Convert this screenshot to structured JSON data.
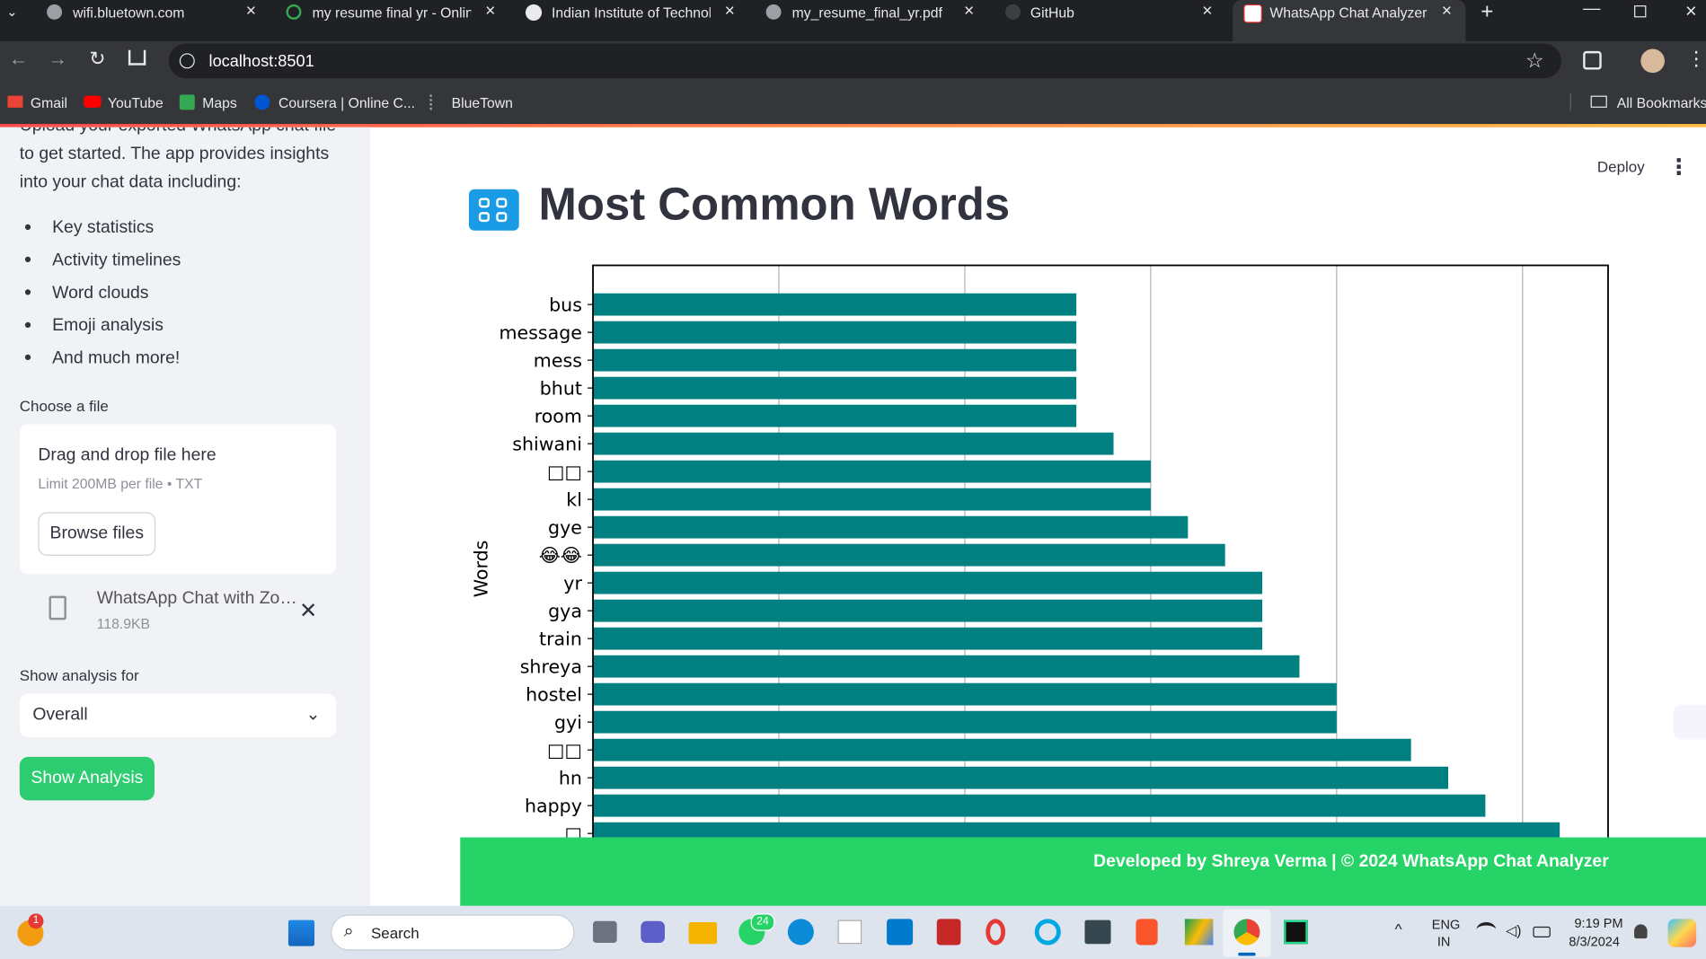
{
  "browser": {
    "tabs": [
      "wifi.bluetown.com",
      "my resume final yr - Online",
      "Indian Institute of Technolo",
      "my_resume_final_yr.pdf",
      "GitHub",
      "WhatsApp Chat Analyzer"
    ],
    "url": "localhost:8501",
    "bookmarks": [
      "Gmail",
      "YouTube",
      "Maps",
      "Coursera | Online C...",
      "BlueTown"
    ],
    "all_bookmarks": "All Bookmarks"
  },
  "sidebar": {
    "intro": "Upload your exported WhatsApp chat file to get started. The app provides insights into your chat data including:",
    "features": [
      "Key statistics",
      "Activity timelines",
      "Word clouds",
      "Emoji analysis",
      "And much more!"
    ],
    "file_label": "Choose a file",
    "dropzone_title": "Drag and drop file here",
    "dropzone_hint": "Limit 200MB per file • TXT",
    "browse_button": "Browse files",
    "file_name": "WhatsApp Chat with Zo…",
    "file_size": "118.9KB",
    "select_label": "Show analysis for",
    "select_value": "Overall",
    "button": "Show Analysis"
  },
  "header": {
    "deploy": "Deploy"
  },
  "page_title": "Most Common Words",
  "chart_data": {
    "type": "barh",
    "y_label": "Words",
    "categories": [
      "bus",
      "message",
      "mess",
      "bhut",
      "room",
      "shiwani",
      "□□",
      "kl",
      "gye",
      "😂😂",
      "yr",
      "gya",
      "train",
      "shreya",
      "hostel",
      "gyi",
      "□□",
      "hn",
      "happy",
      "□"
    ],
    "values": [
      13,
      13,
      13,
      13,
      13,
      14,
      15,
      15,
      16,
      17,
      18,
      18,
      18,
      19,
      20,
      20,
      22,
      23,
      24,
      26
    ],
    "color": "#008080",
    "xlim": [
      0,
      27.3
    ],
    "xticks": [
      0,
      5,
      10,
      15,
      20,
      25
    ],
    "grid": true
  },
  "footer": "Developed by Shreya Verma | © 2024 WhatsApp Chat Analyzer",
  "taskbar": {
    "notification": "1",
    "search": "Search",
    "whatsapp_badge": "24",
    "language": "ENG",
    "region": "IN",
    "time": "9:19 PM",
    "date": "8/3/2024"
  }
}
